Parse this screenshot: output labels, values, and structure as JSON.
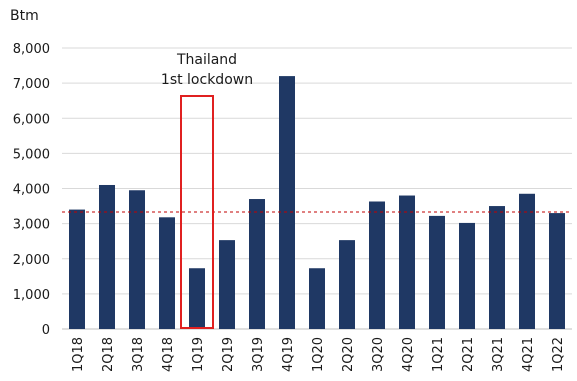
{
  "chart_data": {
    "type": "bar",
    "unit_label": "Btm",
    "categories": [
      "1Q18",
      "2Q18",
      "3Q18",
      "4Q18",
      "1Q19",
      "2Q19",
      "3Q19",
      "4Q19",
      "1Q20",
      "2Q20",
      "3Q20",
      "4Q20",
      "1Q21",
      "2Q21",
      "3Q21",
      "4Q21",
      "1Q22"
    ],
    "values": [
      3400,
      4100,
      3950,
      3180,
      1730,
      2530,
      3700,
      7200,
      1730,
      2530,
      3630,
      3800,
      3220,
      3020,
      3500,
      3850,
      3300
    ],
    "ylim": [
      0,
      8000
    ],
    "yticks": [
      0,
      1000,
      2000,
      3000,
      4000,
      5000,
      6000,
      7000,
      8000
    ],
    "ytick_labels": [
      "0",
      "1,000",
      "2,000",
      "3,000",
      "4,000",
      "5,000",
      "6,000",
      "7,000",
      "8,000"
    ],
    "reference_line": {
      "value": 3330,
      "style": "dashed"
    },
    "grid": true,
    "annotation": {
      "lines": [
        "Thailand",
        "1st lockdown"
      ],
      "category": "1Q19"
    },
    "colors": {
      "bar": "#1f3864",
      "reference_line": "#c00000",
      "annotation_box": "#e02020",
      "grid": "#d9d9d9"
    }
  }
}
